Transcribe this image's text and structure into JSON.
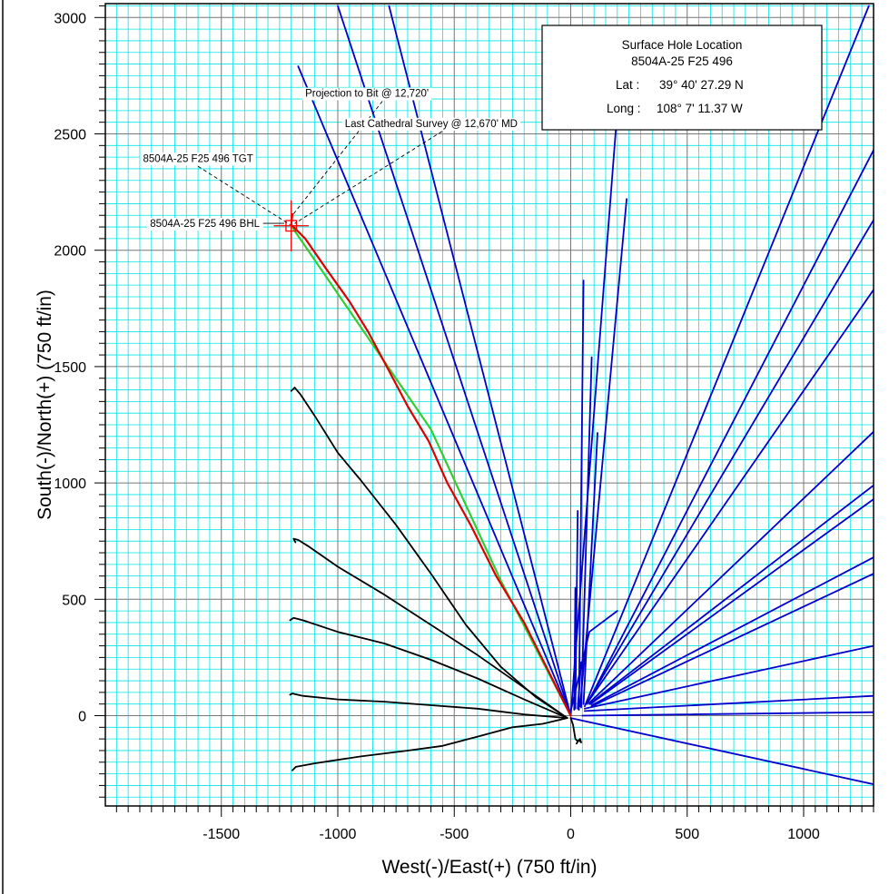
{
  "chart_data": {
    "type": "line",
    "xlabel": "West(-)/East(+) (750 ft/in)",
    "ylabel": "South(-)/North(+) (750 ft/in)",
    "xlim": [
      -2000,
      1300
    ],
    "ylim": [
      -400,
      3050
    ],
    "x_ticks": [
      -1500,
      -1000,
      -500,
      0,
      500,
      1000
    ],
    "y_ticks": [
      0,
      500,
      1000,
      1500,
      2000,
      2500,
      3000
    ],
    "grid": true,
    "colors": {
      "minor_grid": "#00e5e5",
      "major_grid": "#777777",
      "plan": "#33cc33",
      "actual": "#dd0000",
      "offset_blue": "#0000cc",
      "offset_black": "#000000",
      "target": "#ff0000",
      "background": "#ffffff"
    },
    "info_box": {
      "title": "Surface Hole Location",
      "well": "8504A-25 F25 496",
      "lat_label": "Lat :",
      "lat_value": "39° 40' 27.29 N",
      "long_label": "Long :",
      "long_value": "108° 7' 11.37 W"
    },
    "annotations": [
      {
        "text": "Projection to Bit @ 12,720'",
        "x": -1140,
        "y": 2660,
        "anchor": "start",
        "to": [
          -1195,
          2150
        ]
      },
      {
        "text": "Last Cathedral Survey @ 12,670' MD",
        "x": -970,
        "y": 2530,
        "anchor": "start",
        "to": [
          -1185,
          2115
        ]
      },
      {
        "text": "8504A-25 F25 496 TGT",
        "x": -1600,
        "y": 2380,
        "anchor": "middle",
        "to": [
          -1205,
          2110
        ]
      },
      {
        "text": "8504A-25 F25 496 BHL",
        "x": -1335,
        "y": 2100,
        "anchor": "end",
        "to": null
      }
    ],
    "target": {
      "x": -1200,
      "y": 2105,
      "box_size": 45,
      "cross_half_width": 75,
      "cross_half_height": 110
    },
    "series": [
      {
        "role": "plan",
        "points": [
          [
            0,
            0
          ],
          [
            -300,
            580
          ],
          [
            -600,
            1230
          ],
          [
            -1200,
            2105
          ]
        ]
      },
      {
        "role": "actual",
        "points": [
          [
            0,
            0
          ],
          [
            -80,
            160
          ],
          [
            -200,
            400
          ],
          [
            -320,
            600
          ],
          [
            -430,
            820
          ],
          [
            -530,
            1000
          ],
          [
            -610,
            1180
          ],
          [
            -700,
            1330
          ],
          [
            -790,
            1500
          ],
          [
            -870,
            1650
          ],
          [
            -950,
            1780
          ],
          [
            -1050,
            1920
          ],
          [
            -1140,
            2050
          ],
          [
            -1200,
            2110
          ],
          [
            -1195,
            2155
          ]
        ]
      },
      {
        "role": "offset_blue",
        "points": [
          [
            0,
            0
          ],
          [
            -1000,
            3050
          ]
        ]
      },
      {
        "role": "offset_blue",
        "points": [
          [
            0,
            0
          ],
          [
            -1170,
            2790
          ]
        ]
      },
      {
        "role": "offset_blue",
        "points": [
          [
            0,
            0
          ],
          [
            -780,
            3050
          ]
        ]
      },
      {
        "role": "offset_blue",
        "points": [
          [
            0,
            0
          ],
          [
            200,
            2600
          ]
        ]
      },
      {
        "role": "offset_blue",
        "points": [
          [
            40,
            40
          ],
          [
            240,
            2220
          ]
        ]
      },
      {
        "role": "offset_blue",
        "points": [
          [
            35,
            25
          ],
          [
            55,
            1870
          ]
        ]
      },
      {
        "role": "offset_blue",
        "points": [
          [
            45,
            35
          ],
          [
            90,
            1540
          ]
        ]
      },
      {
        "role": "offset_blue",
        "points": [
          [
            55,
            50
          ],
          [
            115,
            1215
          ]
        ]
      },
      {
        "role": "offset_blue",
        "points": [
          [
            20,
            30
          ],
          [
            30,
            880
          ]
        ]
      },
      {
        "role": "offset_blue",
        "points": [
          [
            15,
            25
          ],
          [
            20,
            550
          ]
        ]
      },
      {
        "role": "offset_blue",
        "points": [
          [
            30,
            30
          ],
          [
            45,
            230
          ]
        ]
      },
      {
        "role": "offset_blue",
        "points": [
          [
            60,
            40
          ],
          [
            1280,
            3050
          ]
        ]
      },
      {
        "role": "offset_blue",
        "points": [
          [
            70,
            50
          ],
          [
            1300,
            2430
          ]
        ]
      },
      {
        "role": "offset_blue",
        "points": [
          [
            70,
            55
          ],
          [
            1300,
            2130
          ]
        ]
      },
      {
        "role": "offset_blue",
        "points": [
          [
            75,
            60
          ],
          [
            1300,
            1830
          ]
        ]
      },
      {
        "role": "offset_blue",
        "points": [
          [
            80,
            55
          ],
          [
            1300,
            1220
          ]
        ]
      },
      {
        "role": "offset_blue",
        "points": [
          [
            80,
            50
          ],
          [
            1300,
            990
          ]
        ]
      },
      {
        "role": "offset_blue",
        "points": [
          [
            85,
            50
          ],
          [
            1300,
            930
          ]
        ]
      },
      {
        "role": "offset_blue",
        "points": [
          [
            90,
            45
          ],
          [
            1300,
            680
          ]
        ]
      },
      {
        "role": "offset_blue",
        "points": [
          [
            90,
            40
          ],
          [
            1300,
            610
          ]
        ]
      },
      {
        "role": "offset_blue",
        "points": [
          [
            60,
            30
          ],
          [
            1300,
            300
          ]
        ]
      },
      {
        "role": "offset_blue",
        "points": [
          [
            60,
            20
          ],
          [
            1300,
            85
          ]
        ]
      },
      {
        "role": "offset_blue",
        "points": [
          [
            50,
            0
          ],
          [
            1300,
            15
          ]
        ]
      },
      {
        "role": "offset_blue",
        "points": [
          [
            0,
            -10
          ],
          [
            1300,
            -295
          ]
        ]
      },
      {
        "role": "offset_blue",
        "points": [
          [
            0,
            20
          ],
          [
            80,
            360
          ],
          [
            200,
            450
          ]
        ]
      },
      {
        "role": "offset_black",
        "points": [
          [
            -15,
            -10
          ],
          [
            -150,
            80
          ],
          [
            -300,
            210
          ],
          [
            -450,
            390
          ],
          [
            -600,
            610
          ],
          [
            -750,
            820
          ],
          [
            -900,
            1010
          ],
          [
            -1000,
            1130
          ],
          [
            -1100,
            1290
          ],
          [
            -1160,
            1380
          ],
          [
            -1185,
            1410
          ],
          [
            -1200,
            1395
          ]
        ]
      },
      {
        "role": "offset_black",
        "points": [
          [
            -15,
            -10
          ],
          [
            -200,
            120
          ],
          [
            -400,
            260
          ],
          [
            -600,
            390
          ],
          [
            -800,
            520
          ],
          [
            -1000,
            640
          ],
          [
            -1130,
            730
          ],
          [
            -1170,
            755
          ],
          [
            -1190,
            760
          ],
          [
            -1182,
            745
          ]
        ]
      },
      {
        "role": "offset_black",
        "points": [
          [
            -15,
            -10
          ],
          [
            -200,
            70
          ],
          [
            -400,
            160
          ],
          [
            -600,
            240
          ],
          [
            -800,
            310
          ],
          [
            -1000,
            360
          ],
          [
            -1150,
            410
          ],
          [
            -1190,
            420
          ],
          [
            -1205,
            410
          ]
        ]
      },
      {
        "role": "offset_black",
        "points": [
          [
            -15,
            -10
          ],
          [
            -200,
            5
          ],
          [
            -400,
            30
          ],
          [
            -600,
            45
          ],
          [
            -800,
            60
          ],
          [
            -1000,
            70
          ],
          [
            -1150,
            85
          ],
          [
            -1195,
            95
          ],
          [
            -1205,
            90
          ]
        ]
      },
      {
        "role": "offset_black",
        "points": [
          [
            -15,
            -10
          ],
          [
            -120,
            -35
          ],
          [
            -250,
            -50
          ],
          [
            -400,
            -90
          ],
          [
            -550,
            -130
          ],
          [
            -700,
            -150
          ],
          [
            -900,
            -175
          ],
          [
            -1000,
            -190
          ],
          [
            -1100,
            -205
          ],
          [
            -1180,
            -220
          ],
          [
            -1195,
            -235
          ]
        ]
      },
      {
        "role": "offset_black",
        "points": [
          [
            0,
            -10
          ],
          [
            10,
            -40
          ],
          [
            20,
            -100
          ],
          [
            30,
            -110
          ],
          [
            40,
            -100
          ],
          [
            45,
            -115
          ],
          [
            35,
            -105
          ],
          [
            25,
            -120
          ]
        ]
      }
    ]
  }
}
